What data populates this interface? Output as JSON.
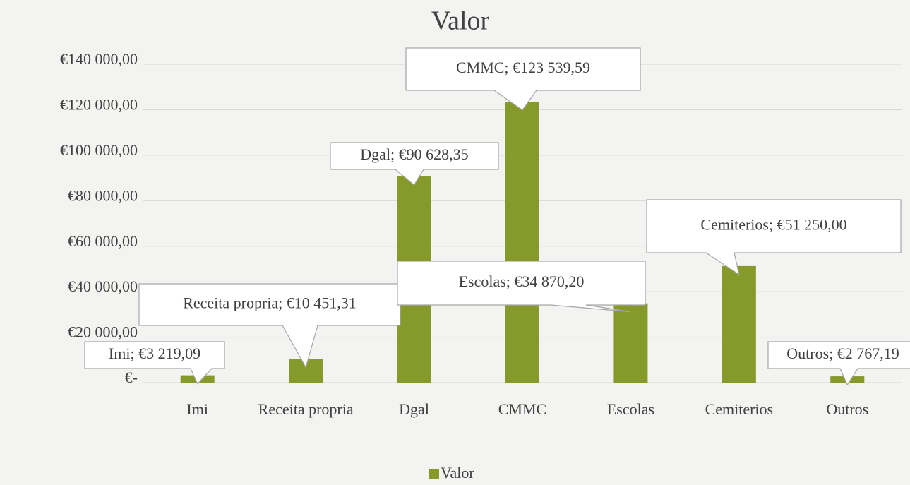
{
  "chart_data": {
    "type": "bar",
    "title": "Valor",
    "categories": [
      "Imi",
      "Receita propria",
      "Dgal",
      "CMMC",
      "Escolas",
      "Cemiterios",
      "Outros"
    ],
    "series": [
      {
        "name": "Valor",
        "color": "#86992b",
        "values": [
          3219.09,
          10451.31,
          90628.35,
          123539.59,
          34870.2,
          51250,
          2767.19
        ],
        "value_labels": [
          "Imi; €3 219,09",
          "Receita propria; €10 451,31",
          "Dgal; €90 628,35",
          "CMMC; €123 539,59",
          "Escolas; €34 870,20",
          "Cemiterios; €51 250,00",
          "Outros; €2 767,19"
        ]
      }
    ],
    "ylim": [
      0,
      140000
    ],
    "yticks": [
      {
        "value": 0,
        "label": "€-"
      },
      {
        "value": 20000,
        "label": "€20 000,00"
      },
      {
        "value": 40000,
        "label": "€40 000,00"
      },
      {
        "value": 60000,
        "label": "€60 000,00"
      },
      {
        "value": 80000,
        "label": "€80 000,00"
      },
      {
        "value": 100000,
        "label": "€100 000,00"
      },
      {
        "value": 120000,
        "label": "€120 000,00"
      },
      {
        "value": 140000,
        "label": "€140 000,00"
      }
    ],
    "grid": true,
    "legend": "bottom"
  }
}
